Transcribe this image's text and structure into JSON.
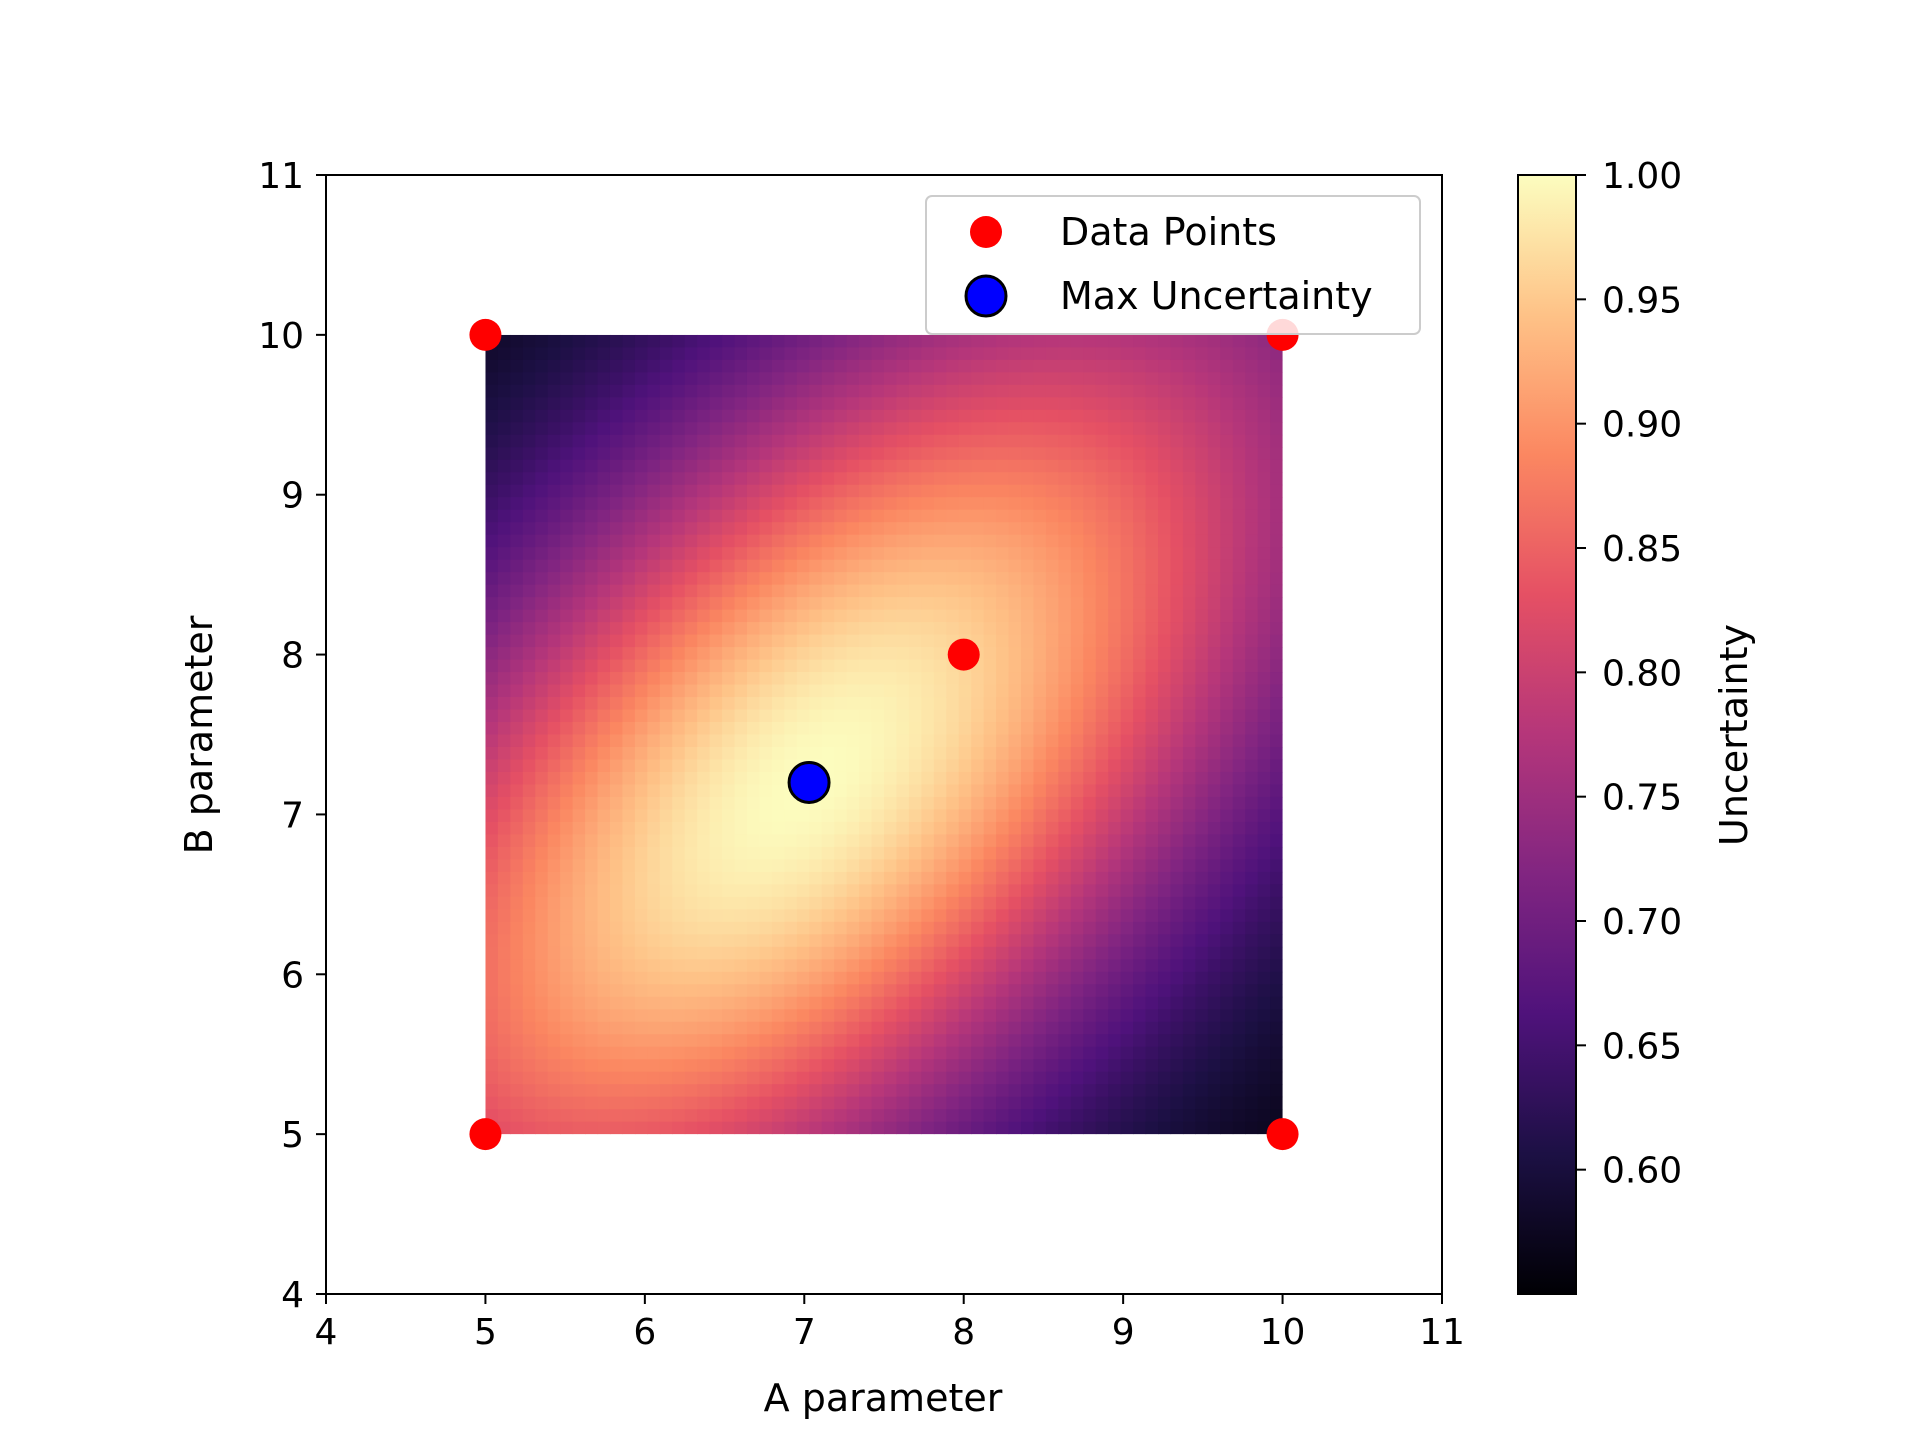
{
  "chart_data": {
    "type": "heatmap",
    "xlabel": "A parameter",
    "ylabel": "B parameter",
    "xlim": [
      4,
      11
    ],
    "ylim": [
      4,
      11
    ],
    "x_ticks": [
      "4",
      "5",
      "6",
      "7",
      "8",
      "9",
      "10",
      "11"
    ],
    "y_ticks": [
      "4",
      "5",
      "6",
      "7",
      "8",
      "9",
      "10",
      "11"
    ],
    "colormap": "magma",
    "heatmap": {
      "x_range": [
        5,
        10
      ],
      "y_range": [
        5,
        10
      ],
      "value_range": [
        0.55,
        1.0
      ],
      "description_of_field": "peak near (7, 7.2), decreasing toward (10, 5)"
    },
    "colorbar": {
      "label": "Uncertainty",
      "range": [
        0.55,
        1.0
      ],
      "ticks": [
        "0.60",
        "0.65",
        "0.70",
        "0.75",
        "0.80",
        "0.85",
        "0.90",
        "0.95",
        "1.00"
      ]
    },
    "series": [
      {
        "name": "Data Points",
        "type": "scatter",
        "color": "#ff0000",
        "points": [
          [
            5,
            10
          ],
          [
            10,
            10
          ],
          [
            8,
            8
          ],
          [
            5,
            5
          ],
          [
            10,
            5
          ]
        ]
      },
      {
        "name": "Max Uncertainty",
        "type": "scatter",
        "color": "#0000ff",
        "edgecolor": "#000000",
        "points": [
          [
            7.03,
            7.2
          ]
        ]
      }
    ],
    "legend": {
      "position": "top-right",
      "entries": [
        "Data Points",
        "Max Uncertainty"
      ]
    }
  }
}
